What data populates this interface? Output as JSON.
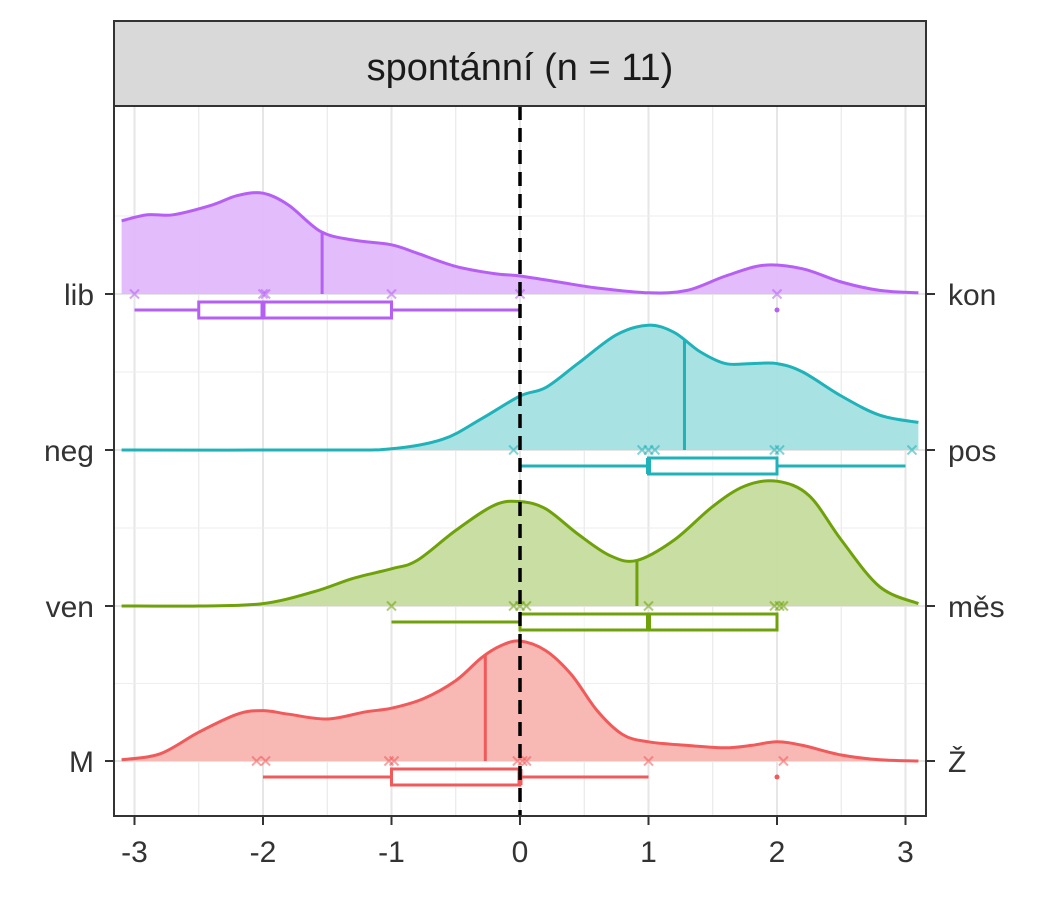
{
  "chart_data": {
    "type": "ridgeline",
    "title": "",
    "panel_title": "spontánní (n = 11)",
    "xlabel": "",
    "ylabel": "",
    "xlim": [
      -3.1,
      3.1
    ],
    "x_ticks": [
      "-3",
      "-2",
      "-1",
      "0",
      "1",
      "2",
      "3"
    ],
    "x_tick_values": [
      -3,
      -2,
      -1,
      0,
      1,
      2,
      3
    ],
    "reference_line_x": 0,
    "grid": true,
    "legend": "none",
    "series": [
      {
        "left_label": "M",
        "right_label": "Ž",
        "color": "#F05A5A",
        "fill": "#F8B4B0",
        "mean": -0.27,
        "points": [
          -2.05,
          -1.98,
          -1.02,
          -0.98,
          -0.02,
          0.02,
          0.05,
          1.0,
          2.05
        ],
        "box": {
          "whisker_low": -2,
          "q1": -1,
          "median": 0,
          "q3": 0,
          "whisker_high": 1
        },
        "outliers": [
          2
        ],
        "density": [
          [
            -3.1,
            0.01
          ],
          [
            -2.8,
            0.06
          ],
          [
            -2.5,
            0.24
          ],
          [
            -2.2,
            0.39
          ],
          [
            -2.0,
            0.42
          ],
          [
            -1.8,
            0.39
          ],
          [
            -1.5,
            0.35
          ],
          [
            -1.2,
            0.41
          ],
          [
            -1.0,
            0.44
          ],
          [
            -0.75,
            0.52
          ],
          [
            -0.5,
            0.67
          ],
          [
            -0.3,
            0.86
          ],
          [
            -0.15,
            0.96
          ],
          [
            0.0,
            1.0
          ],
          [
            0.2,
            0.92
          ],
          [
            0.4,
            0.72
          ],
          [
            0.6,
            0.42
          ],
          [
            0.8,
            0.22
          ],
          [
            1.0,
            0.16
          ],
          [
            1.3,
            0.13
          ],
          [
            1.6,
            0.11
          ],
          [
            1.8,
            0.13
          ],
          [
            2.0,
            0.16
          ],
          [
            2.2,
            0.13
          ],
          [
            2.5,
            0.05
          ],
          [
            2.8,
            0.01
          ],
          [
            3.1,
            0.0
          ]
        ]
      },
      {
        "left_label": "ven",
        "right_label": "měs",
        "color": "#6FA20A",
        "fill": "#C5DC9E",
        "mean": 0.91,
        "points": [
          -1.0,
          -0.05,
          0.0,
          0.05,
          1.0,
          1.98,
          2.02,
          2.05
        ],
        "box": {
          "whisker_low": -1,
          "q1": 0,
          "median": 1,
          "q3": 2,
          "whisker_high": 2
        },
        "outliers": [],
        "density": [
          [
            -3.1,
            0.0
          ],
          [
            -2.5,
            0.0
          ],
          [
            -2.0,
            0.02
          ],
          [
            -1.6,
            0.12
          ],
          [
            -1.3,
            0.23
          ],
          [
            -1.0,
            0.31
          ],
          [
            -0.8,
            0.38
          ],
          [
            -0.5,
            0.63
          ],
          [
            -0.2,
            0.84
          ],
          [
            0.0,
            0.87
          ],
          [
            0.2,
            0.81
          ],
          [
            0.45,
            0.6
          ],
          [
            0.7,
            0.42
          ],
          [
            0.91,
            0.38
          ],
          [
            1.2,
            0.55
          ],
          [
            1.5,
            0.83
          ],
          [
            1.75,
            1.0
          ],
          [
            2.0,
            1.04
          ],
          [
            2.25,
            0.92
          ],
          [
            2.5,
            0.55
          ],
          [
            2.8,
            0.16
          ],
          [
            3.1,
            0.02
          ]
        ]
      },
      {
        "left_label": "neg",
        "right_label": "pos",
        "color": "#1FB2B8",
        "fill": "#A4E0E2",
        "mean": 1.28,
        "points": [
          -0.05,
          0.95,
          1.0,
          1.05,
          1.98,
          2.02,
          3.05
        ],
        "box": {
          "whisker_low": 0,
          "q1": 1,
          "median": 1,
          "q3": 2,
          "whisker_high": 3
        },
        "outliers": [],
        "density": [
          [
            -3.1,
            0.0
          ],
          [
            -1.5,
            0.0
          ],
          [
            -1.0,
            0.01
          ],
          [
            -0.6,
            0.09
          ],
          [
            -0.3,
            0.26
          ],
          [
            0.0,
            0.45
          ],
          [
            0.2,
            0.52
          ],
          [
            0.45,
            0.72
          ],
          [
            0.75,
            0.96
          ],
          [
            1.0,
            1.04
          ],
          [
            1.2,
            0.98
          ],
          [
            1.4,
            0.82
          ],
          [
            1.6,
            0.72
          ],
          [
            1.8,
            0.72
          ],
          [
            2.0,
            0.72
          ],
          [
            2.2,
            0.65
          ],
          [
            2.5,
            0.45
          ],
          [
            2.8,
            0.29
          ],
          [
            3.1,
            0.23
          ]
        ]
      },
      {
        "left_label": "lib",
        "right_label": "kon",
        "color": "#B65FF5",
        "fill": "#E2B8FB",
        "mean": -1.54,
        "points": [
          -3.0,
          -2.0,
          -1.98,
          -1.0,
          0.0,
          2.0
        ],
        "box": {
          "whisker_low": -3,
          "q1": -2.5,
          "median": -2,
          "q3": -1,
          "whisker_high": 0
        },
        "outliers": [
          2
        ],
        "density": [
          [
            -3.1,
            0.61
          ],
          [
            -2.9,
            0.66
          ],
          [
            -2.7,
            0.66
          ],
          [
            -2.4,
            0.74
          ],
          [
            -2.2,
            0.82
          ],
          [
            -2.0,
            0.84
          ],
          [
            -1.8,
            0.74
          ],
          [
            -1.55,
            0.52
          ],
          [
            -1.3,
            0.45
          ],
          [
            -1.0,
            0.41
          ],
          [
            -0.8,
            0.34
          ],
          [
            -0.5,
            0.23
          ],
          [
            -0.2,
            0.17
          ],
          [
            0.0,
            0.15
          ],
          [
            0.3,
            0.1
          ],
          [
            0.6,
            0.05
          ],
          [
            1.0,
            0.01
          ],
          [
            1.3,
            0.03
          ],
          [
            1.6,
            0.15
          ],
          [
            1.9,
            0.24
          ],
          [
            2.2,
            0.21
          ],
          [
            2.5,
            0.1
          ],
          [
            2.8,
            0.03
          ],
          [
            3.1,
            0.01
          ]
        ]
      }
    ]
  }
}
